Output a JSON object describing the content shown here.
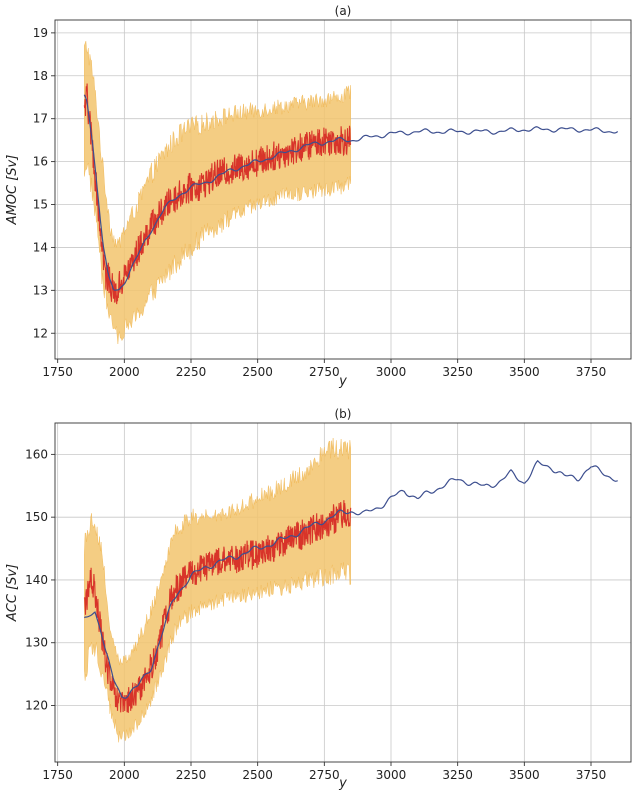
{
  "chart_data": [
    {
      "type": "line",
      "title": "(a)",
      "xlabel": "y",
      "ylabel": "AMOC [Sv]",
      "xlim": [
        1740,
        3900
      ],
      "ylim": [
        11.4,
        19.3
      ],
      "xticks": [
        1750,
        2000,
        2250,
        2500,
        2750,
        3000,
        3250,
        3500,
        3750
      ],
      "yticks": [
        12,
        13,
        14,
        15,
        16,
        17,
        18,
        19
      ],
      "grid": true,
      "colors": {
        "band": "#f2c46d",
        "noisy": "#d8342a",
        "smooth": "#3d4f8f"
      },
      "series": [
        {
          "kind": "band",
          "x": [
            1850,
            1860,
            1880,
            1900,
            1920,
            1950,
            1975,
            2000,
            2050,
            2100,
            2150,
            2200,
            2250,
            2300,
            2400,
            2500,
            2600,
            2700,
            2800,
            2850
          ],
          "low": [
            15.8,
            16.0,
            15.3,
            14.4,
            13.1,
            12.3,
            11.9,
            12.1,
            12.4,
            12.9,
            13.3,
            13.7,
            14.0,
            14.3,
            14.7,
            15.0,
            15.2,
            15.3,
            15.4,
            15.5
          ],
          "high": [
            18.6,
            18.7,
            18.1,
            17.1,
            15.8,
            14.4,
            14.0,
            14.4,
            15.0,
            15.7,
            16.2,
            16.6,
            16.8,
            16.9,
            17.1,
            17.2,
            17.3,
            17.4,
            17.5,
            17.6
          ]
        },
        {
          "kind": "noisy",
          "x": [
            1850,
            1860,
            1870,
            1880,
            1890,
            1900,
            1910,
            1920,
            1930,
            1940,
            1950,
            1960,
            1970,
            1980,
            1990,
            2000,
            2025,
            2050,
            2075,
            2100,
            2125,
            2150,
            2175,
            2200,
            2225,
            2250,
            2275,
            2300,
            2350,
            2400,
            2450,
            2500,
            2550,
            2600,
            2650,
            2700,
            2750,
            2800,
            2850
          ],
          "y": [
            17.2,
            17.5,
            16.9,
            16.4,
            15.7,
            15.1,
            14.4,
            13.9,
            13.3,
            13.3,
            13.1,
            13.0,
            12.9,
            13.1,
            13.2,
            13.3,
            13.6,
            13.9,
            14.2,
            14.5,
            14.7,
            14.9,
            15.1,
            15.2,
            15.3,
            15.4,
            15.4,
            15.5,
            15.7,
            15.8,
            15.9,
            16.0,
            16.1,
            16.2,
            16.3,
            16.4,
            16.5,
            16.5,
            16.5
          ],
          "amplitude": 0.35
        },
        {
          "kind": "smooth",
          "x": [
            1850,
            1860,
            1880,
            1900,
            1920,
            1940,
            1960,
            1980,
            2000,
            2050,
            2100,
            2150,
            2200,
            2250,
            2300,
            2400,
            2500,
            2600,
            2700,
            2800,
            2850,
            2900,
            3000,
            3100,
            3200,
            3300,
            3400,
            3500,
            3600,
            3700,
            3800,
            3850
          ],
          "y": [
            17.5,
            17.4,
            16.5,
            15.3,
            14.1,
            13.3,
            13.0,
            13.0,
            13.2,
            13.8,
            14.4,
            14.9,
            15.2,
            15.4,
            15.5,
            15.8,
            16.0,
            16.2,
            16.4,
            16.5,
            16.5,
            16.55,
            16.65,
            16.7,
            16.7,
            16.7,
            16.7,
            16.75,
            16.75,
            16.75,
            16.72,
            16.7
          ],
          "wiggle": 0.04
        }
      ]
    },
    {
      "type": "line",
      "title": "(b)",
      "xlabel": "y",
      "ylabel": "ACC [Sv]",
      "xlim": [
        1740,
        3900
      ],
      "ylim": [
        111,
        165
      ],
      "xticks": [
        1750,
        2000,
        2250,
        2500,
        2750,
        3000,
        3250,
        3500,
        3750
      ],
      "yticks": [
        120,
        130,
        140,
        150,
        160
      ],
      "grid": true,
      "colors": {
        "band": "#f2c46d",
        "noisy": "#d8342a",
        "smooth": "#3d4f8f"
      },
      "series": [
        {
          "kind": "band",
          "x": [
            1850,
            1870,
            1890,
            1920,
            1950,
            1980,
            2000,
            2050,
            2100,
            2150,
            2180,
            2200,
            2250,
            2300,
            2400,
            2500,
            2600,
            2700,
            2750,
            2800,
            2850
          ],
          "low": [
            125,
            128,
            129,
            125,
            119,
            115,
            115,
            117,
            121,
            127,
            131,
            133,
            135,
            136,
            137,
            138,
            139,
            140,
            140,
            141,
            141
          ],
          "high": [
            146,
            149,
            150,
            143,
            131,
            127,
            127,
            130,
            135,
            142,
            147,
            148,
            150,
            150,
            151,
            153,
            155,
            158,
            161,
            161,
            161
          ]
        },
        {
          "kind": "noisy",
          "x": [
            1850,
            1860,
            1870,
            1880,
            1890,
            1900,
            1920,
            1940,
            1960,
            1980,
            2000,
            2025,
            2050,
            2075,
            2100,
            2125,
            2150,
            2175,
            2200,
            2225,
            2250,
            2300,
            2350,
            2400,
            2450,
            2500,
            2550,
            2600,
            2650,
            2700,
            2750,
            2800,
            2850
          ],
          "y": [
            135,
            137,
            139,
            140,
            138,
            135,
            130,
            125,
            122,
            120,
            120,
            121,
            122,
            124,
            126,
            129,
            133,
            137,
            139,
            140,
            141,
            142,
            143,
            143,
            144,
            144,
            145,
            146,
            147,
            148,
            149,
            150,
            151
          ],
          "amplitude": 2.4
        },
        {
          "kind": "smooth",
          "x": [
            1850,
            1870,
            1890,
            1910,
            1930,
            1960,
            1990,
            2010,
            2050,
            2100,
            2150,
            2180,
            2200,
            2250,
            2300,
            2400,
            2500,
            2600,
            2700,
            2800,
            2850,
            2900,
            2950,
            3000,
            3050,
            3100,
            3150,
            3200,
            3250,
            3300,
            3350,
            3400,
            3450,
            3500,
            3550,
            3600,
            3650,
            3700,
            3750,
            3800,
            3850
          ],
          "y": [
            133.5,
            134.5,
            135.0,
            132.5,
            128.5,
            124.0,
            121.5,
            121.8,
            123.0,
            126.0,
            132.5,
            136.5,
            138.0,
            140.5,
            142.0,
            143.5,
            145.0,
            146.5,
            148.5,
            150.5,
            151.0,
            150.5,
            151.5,
            153.0,
            154.2,
            153.0,
            154.0,
            155.2,
            156.0,
            155.5,
            154.8,
            155.5,
            157.0,
            155.5,
            158.5,
            158.0,
            156.5,
            156.2,
            158.0,
            157.0,
            155.8
          ],
          "wiggle": 0.35
        }
      ]
    }
  ]
}
